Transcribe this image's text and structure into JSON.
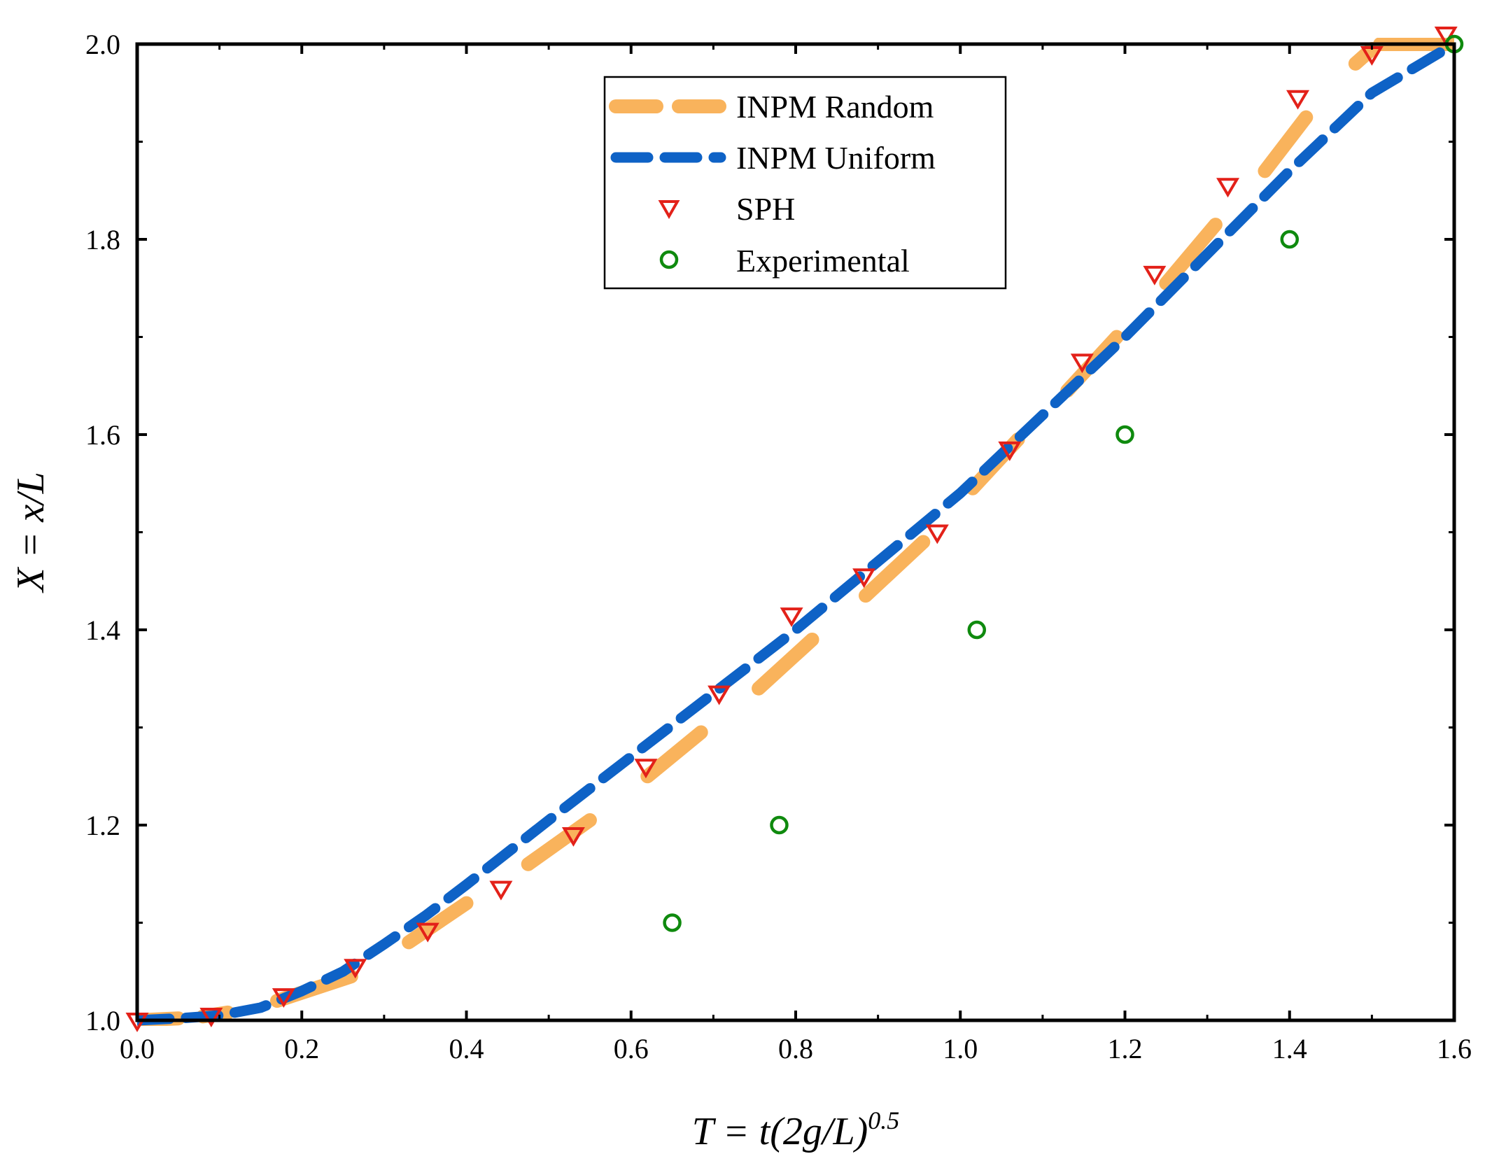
{
  "chart_data": {
    "type": "line",
    "xlabel": {
      "main": "T = t(2g/L)",
      "sup": "0.5"
    },
    "ylabel": "X = x/L",
    "xlim": [
      0.0,
      1.6
    ],
    "ylim": [
      1.0,
      2.0
    ],
    "xticks": [
      "0.0",
      "0.2",
      "0.4",
      "0.6",
      "0.8",
      "1.0",
      "1.2",
      "1.4",
      "1.6"
    ],
    "yticks": [
      "1.0",
      "1.2",
      "1.4",
      "1.6",
      "1.8",
      "2.0"
    ],
    "grid": false,
    "legend_position": "top-center",
    "series": [
      {
        "name": "INPM Random",
        "style": "dashed-thick",
        "color": "#F9B35C",
        "segments": [
          [
            [
              0.0,
              1.0
            ],
            [
              0.05,
              1.002
            ]
          ],
          [
            [
              0.08,
              1.004
            ],
            [
              0.11,
              1.008
            ]
          ],
          [
            [
              0.17,
              1.02
            ],
            [
              0.26,
              1.045
            ]
          ],
          [
            [
              0.33,
              1.08
            ],
            [
              0.4,
              1.12
            ]
          ],
          [
            [
              0.475,
              1.16
            ],
            [
              0.55,
              1.205
            ]
          ],
          [
            [
              0.62,
              1.25
            ],
            [
              0.685,
              1.295
            ]
          ],
          [
            [
              0.755,
              1.34
            ],
            [
              0.82,
              1.39
            ]
          ],
          [
            [
              0.885,
              1.435
            ],
            [
              0.955,
              1.49
            ]
          ],
          [
            [
              1.015,
              1.545
            ],
            [
              1.07,
              1.595
            ]
          ],
          [
            [
              1.13,
              1.645
            ],
            [
              1.19,
              1.7
            ]
          ],
          [
            [
              1.25,
              1.755
            ],
            [
              1.31,
              1.815
            ]
          ],
          [
            [
              1.37,
              1.87
            ],
            [
              1.42,
              1.925
            ]
          ],
          [
            [
              1.48,
              1.98
            ],
            [
              1.5,
              1.995
            ]
          ],
          [
            [
              1.51,
              2.0
            ],
            [
              1.6,
              2.0
            ]
          ]
        ]
      },
      {
        "name": "INPM Uniform",
        "style": "dashed",
        "color": "#0E62C6",
        "points": [
          [
            0.0,
            1.0
          ],
          [
            0.05,
            1.002
          ],
          [
            0.1,
            1.005
          ],
          [
            0.15,
            1.013
          ],
          [
            0.2,
            1.03
          ],
          [
            0.25,
            1.05
          ],
          [
            0.3,
            1.078
          ],
          [
            0.35,
            1.107
          ],
          [
            0.4,
            1.139
          ],
          [
            0.5,
            1.205
          ],
          [
            0.6,
            1.27
          ],
          [
            0.7,
            1.335
          ],
          [
            0.8,
            1.4
          ],
          [
            0.9,
            1.47
          ],
          [
            1.0,
            1.54
          ],
          [
            1.1,
            1.62
          ],
          [
            1.2,
            1.7
          ],
          [
            1.3,
            1.785
          ],
          [
            1.4,
            1.87
          ],
          [
            1.5,
            1.95
          ],
          [
            1.6,
            2.0
          ]
        ]
      },
      {
        "name": "SPH",
        "style": "triangle-down-open",
        "color": "#E32119",
        "points": [
          [
            0.0,
            1.0
          ],
          [
            0.09,
            1.005
          ],
          [
            0.178,
            1.025
          ],
          [
            0.265,
            1.055
          ],
          [
            0.353,
            1.092
          ],
          [
            0.442,
            1.135
          ],
          [
            0.53,
            1.19
          ],
          [
            0.618,
            1.26
          ],
          [
            0.707,
            1.335
          ],
          [
            0.795,
            1.415
          ],
          [
            0.883,
            1.455
          ],
          [
            0.972,
            1.5
          ],
          [
            1.06,
            1.585
          ],
          [
            1.148,
            1.675
          ],
          [
            1.236,
            1.765
          ],
          [
            1.325,
            1.855
          ],
          [
            1.41,
            1.945
          ],
          [
            1.5,
            1.99
          ],
          [
            1.59,
            2.01
          ]
        ]
      },
      {
        "name": "Experimental",
        "style": "circle-open",
        "color": "#0F8A0E",
        "points": [
          [
            0.65,
            1.1
          ],
          [
            0.78,
            1.2
          ],
          [
            1.02,
            1.4
          ],
          [
            1.2,
            1.6
          ],
          [
            1.4,
            1.8
          ],
          [
            1.6,
            2.0
          ]
        ]
      }
    ]
  }
}
